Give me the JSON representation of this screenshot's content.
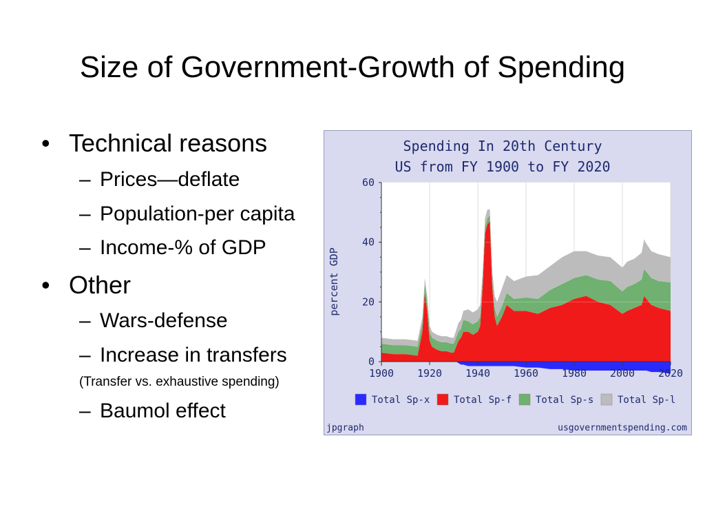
{
  "slide": {
    "title": "Size of Government-Growth of Spending",
    "bullet_symbol": "•",
    "dash_symbol": "–",
    "bullets": [
      {
        "text": "Technical reasons",
        "subs": [
          "Prices—deflate",
          "Population-per capita",
          "Income-% of GDP"
        ]
      },
      {
        "text": "Other",
        "subs": [
          "Wars-defense",
          "Increase in transfers"
        ],
        "note": "(Transfer vs. exhaustive spending)",
        "subs_after": [
          "Baumol effect"
        ]
      }
    ]
  },
  "chart_data": {
    "type": "area",
    "title": "Spending In 20th Century",
    "subtitle": "US from FY 1900 to FY 2020",
    "ylabel": "percent GDP",
    "xlabel": "",
    "xlim": [
      1900,
      2020
    ],
    "ylim": [
      0,
      60
    ],
    "x_ticks": [
      1900,
      1920,
      1940,
      1960,
      1980,
      2000,
      2020
    ],
    "y_ticks": [
      0,
      20,
      40,
      60
    ],
    "grid": true,
    "legend_position": "bottom",
    "footer_left": "jpgraph",
    "footer_right": "usgovernmentspending.com",
    "colors": {
      "plot_bg": "#ffffff",
      "frame_bg": "#d9d9ef",
      "sp_x": "#2a2aff",
      "sp_f": "#f01a1a",
      "sp_s": "#70b070",
      "sp_l": "#bcbcbc",
      "text": "#1e2a6e"
    },
    "x": [
      1900,
      1905,
      1910,
      1915,
      1917,
      1918,
      1919,
      1920,
      1921,
      1923,
      1925,
      1927,
      1929,
      1930,
      1931,
      1932,
      1933,
      1934,
      1936,
      1938,
      1940,
      1941,
      1942,
      1943,
      1944,
      1945,
      1946,
      1947,
      1948,
      1950,
      1952,
      1955,
      1960,
      1965,
      1970,
      1975,
      1980,
      1985,
      1990,
      1995,
      2000,
      2002,
      2005,
      2008,
      2009,
      2010,
      2012,
      2015,
      2020
    ],
    "series": [
      {
        "name": "Total Sp-x",
        "values": [
          0,
          0,
          0,
          0,
          0,
          0,
          0,
          0,
          0,
          0,
          0,
          0,
          0,
          0,
          0,
          -0.5,
          -1,
          -1,
          -1.5,
          -1.5,
          -1.5,
          -1.5,
          -1.5,
          -1.5,
          -1.5,
          -1.5,
          -1.5,
          -1.5,
          -1.5,
          -1.5,
          -1.5,
          -1.5,
          -2,
          -2,
          -2.5,
          -2.5,
          -3,
          -3,
          -3,
          -3,
          -3,
          -3,
          -3,
          -3,
          -3,
          -3,
          -3.5,
          -3.5,
          -4
        ]
      },
      {
        "name": "Total Sp-f",
        "values": [
          3,
          2.5,
          2.5,
          2,
          10,
          23,
          17,
          7,
          5,
          4,
          3.5,
          3.5,
          3,
          3,
          5,
          7,
          8,
          10,
          10,
          9,
          10,
          12,
          25,
          43,
          46,
          47,
          25,
          15,
          12,
          15,
          19,
          17,
          17,
          16,
          18,
          19,
          21,
          22,
          20,
          19,
          16,
          17,
          18,
          19,
          22,
          21,
          19,
          18,
          17
        ]
      },
      {
        "name": "Total Sp-s",
        "values": [
          3,
          3,
          3,
          3,
          3,
          3,
          3,
          3,
          3,
          3,
          3,
          3,
          3,
          3,
          3,
          3,
          3,
          4,
          3.5,
          3.5,
          3.5,
          3,
          2,
          2,
          2,
          2,
          2.5,
          3,
          3,
          3.5,
          4,
          4,
          4.5,
          5,
          6,
          7,
          7,
          7,
          7.5,
          8,
          7.5,
          8,
          8,
          8.5,
          9,
          9,
          9,
          9,
          9.5
        ]
      },
      {
        "name": "Total Sp-l",
        "values": [
          2,
          2,
          2,
          2,
          2,
          2,
          2,
          2,
          2,
          2,
          2,
          2,
          2,
          2,
          2.5,
          3,
          3,
          3,
          4,
          4,
          4,
          4,
          3,
          3,
          3,
          2,
          3,
          4,
          5,
          6,
          6,
          6,
          7,
          8,
          8,
          9,
          9,
          8,
          8,
          8,
          8,
          8.5,
          8.5,
          9,
          10,
          9.5,
          9,
          9,
          8.5
        ]
      }
    ]
  }
}
